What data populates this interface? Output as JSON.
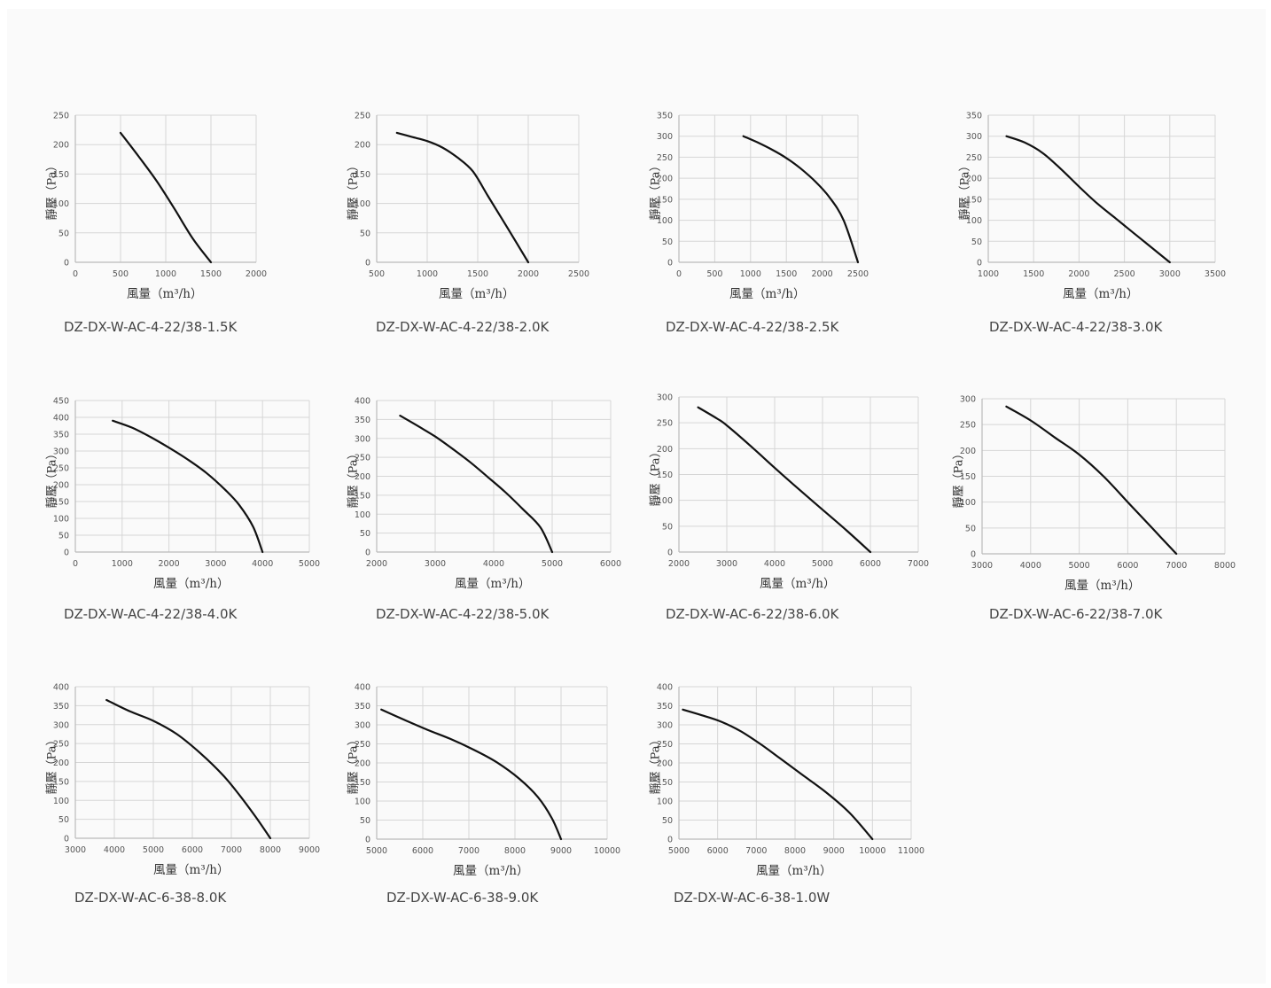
{
  "chart_data": [
    {
      "type": "line",
      "title": "DZ-DX-W-AC-4-22/38-1.5K",
      "xlabel": "風量（m³/h）",
      "ylabel": "靜壓（Pa）",
      "xlim": [
        0,
        2000
      ],
      "ylim": [
        0,
        250
      ],
      "xticks": [
        0,
        500,
        1000,
        1500,
        2000
      ],
      "yticks": [
        0,
        50,
        100,
        150,
        200,
        250
      ],
      "x": [
        500,
        700,
        900,
        1100,
        1300,
        1500
      ],
      "y": [
        220,
        180,
        138,
        90,
        40,
        0
      ]
    },
    {
      "type": "line",
      "title": "DZ-DX-W-AC-4-22/38-2.0K",
      "xlabel": "風量（m³/h）",
      "ylabel": "靜壓（Pa）",
      "xlim": [
        500,
        2500
      ],
      "ylim": [
        0,
        250
      ],
      "xticks": [
        500,
        1000,
        1500,
        2000,
        2500
      ],
      "yticks": [
        0,
        50,
        100,
        150,
        200,
        250
      ],
      "x": [
        700,
        850,
        1000,
        1150,
        1300,
        1450,
        1600,
        1800,
        2000
      ],
      "y": [
        220,
        213,
        206,
        195,
        178,
        155,
        113,
        57,
        0
      ]
    },
    {
      "type": "line",
      "title": "DZ-DX-W-AC-4-22/38-2.5K",
      "xlabel": "風量（m³/h）",
      "ylabel": "靜壓（Pa）",
      "xlim": [
        0,
        2500
      ],
      "ylim": [
        0,
        350
      ],
      "xticks": [
        0,
        500,
        1000,
        1500,
        2000,
        2500
      ],
      "yticks": [
        0,
        50,
        100,
        150,
        200,
        250,
        300,
        350
      ],
      "x": [
        900,
        1100,
        1300,
        1500,
        1700,
        1900,
        2100,
        2300,
        2500
      ],
      "y": [
        300,
        285,
        268,
        248,
        223,
        193,
        155,
        100,
        0
      ]
    },
    {
      "type": "line",
      "title": "DZ-DX-W-AC-4-22/38-3.0K",
      "xlabel": "風量（m³/h）",
      "ylabel": "靜壓（Pa）",
      "xlim": [
        1000,
        3500
      ],
      "ylim": [
        0,
        350
      ],
      "xticks": [
        1000,
        1500,
        2000,
        2500,
        3000,
        3500
      ],
      "yticks": [
        0,
        50,
        100,
        150,
        200,
        250,
        300,
        350
      ],
      "x": [
        1200,
        1400,
        1600,
        1800,
        2000,
        2200,
        2400,
        2600,
        2800,
        3000
      ],
      "y": [
        300,
        285,
        260,
        222,
        180,
        140,
        105,
        70,
        35,
        0
      ]
    },
    {
      "type": "line",
      "title": "DZ-DX-W-AC-4-22/38-4.0K",
      "xlabel": "風量（m³/h）",
      "ylabel": "靜壓（Pa）",
      "xlim": [
        0,
        5000
      ],
      "ylim": [
        0,
        450
      ],
      "xticks": [
        0,
        1000,
        2000,
        3000,
        4000,
        5000
      ],
      "yticks": [
        0,
        50,
        100,
        150,
        200,
        250,
        300,
        350,
        400,
        450
      ],
      "x": [
        800,
        1200,
        1600,
        2000,
        2400,
        2800,
        3200,
        3500,
        3800,
        4000
      ],
      "y": [
        390,
        370,
        342,
        310,
        275,
        235,
        185,
        140,
        75,
        0
      ]
    },
    {
      "type": "line",
      "title": "DZ-DX-W-AC-4-22/38-5.0K",
      "xlabel": "風量（m³/h）",
      "ylabel": "靜壓（Pa）",
      "xlim": [
        2000,
        6000
      ],
      "ylim": [
        0,
        400
      ],
      "xticks": [
        2000,
        3000,
        4000,
        5000,
        6000
      ],
      "yticks": [
        0,
        50,
        100,
        150,
        200,
        250,
        300,
        350,
        400
      ],
      "x": [
        2400,
        2700,
        3000,
        3300,
        3600,
        3900,
        4200,
        4500,
        4800,
        5000
      ],
      "y": [
        360,
        333,
        305,
        272,
        237,
        198,
        158,
        113,
        65,
        0
      ]
    },
    {
      "type": "line",
      "title": "DZ-DX-W-AC-6-22/38-6.0K",
      "xlabel": "風量（m³/h）",
      "ylabel": "靜壓（Pa）",
      "xlim": [
        2000,
        7000
      ],
      "ylim": [
        0,
        300
      ],
      "xticks": [
        2000,
        3000,
        4000,
        5000,
        6000,
        7000
      ],
      "yticks": [
        0,
        50,
        100,
        150,
        200,
        250,
        300
      ],
      "x": [
        2400,
        2800,
        3000,
        3500,
        4000,
        4500,
        5000,
        5500,
        6000
      ],
      "y": [
        280,
        258,
        245,
        205,
        163,
        122,
        82,
        42,
        0
      ]
    },
    {
      "type": "line",
      "title": "DZ-DX-W-AC-6-22/38-7.0K",
      "xlabel": "風量（m³/h）",
      "ylabel": "靜壓（Pa）",
      "xlim": [
        3000,
        8000
      ],
      "ylim": [
        0,
        300
      ],
      "xticks": [
        3000,
        4000,
        5000,
        6000,
        7000,
        8000
      ],
      "yticks": [
        0,
        50,
        100,
        150,
        200,
        250,
        300
      ],
      "x": [
        3500,
        4000,
        4500,
        5000,
        5500,
        6000,
        6500,
        7000
      ],
      "y": [
        285,
        258,
        225,
        192,
        150,
        100,
        50,
        0
      ]
    },
    {
      "type": "line",
      "title": "DZ-DX-W-AC-6-38-8.0K",
      "xlabel": "風量（m³/h）",
      "ylabel": "靜壓（Pa）",
      "xlim": [
        3000,
        9000
      ],
      "ylim": [
        0,
        400
      ],
      "xticks": [
        3000,
        4000,
        5000,
        6000,
        7000,
        8000,
        9000
      ],
      "yticks": [
        0,
        50,
        100,
        150,
        200,
        250,
        300,
        350,
        400
      ],
      "x": [
        3800,
        4400,
        5000,
        5600,
        6200,
        6800,
        7200,
        7600,
        8000
      ],
      "y": [
        365,
        335,
        310,
        275,
        225,
        165,
        115,
        60,
        0
      ]
    },
    {
      "type": "line",
      "title": "DZ-DX-W-AC-6-38-9.0K",
      "xlabel": "風量（m³/h）",
      "ylabel": "靜壓（Pa）",
      "xlim": [
        5000,
        10000
      ],
      "ylim": [
        0,
        400
      ],
      "xticks": [
        5000,
        6000,
        7000,
        8000,
        9000,
        10000
      ],
      "yticks": [
        0,
        50,
        100,
        150,
        200,
        250,
        300,
        350,
        400
      ],
      "x": [
        5100,
        5600,
        6100,
        6600,
        7100,
        7600,
        8100,
        8500,
        8800,
        9000
      ],
      "y": [
        340,
        313,
        287,
        263,
        235,
        202,
        158,
        110,
        55,
        0
      ]
    },
    {
      "type": "line",
      "title": "DZ-DX-W-AC-6-38-1.0W",
      "xlabel": "風量（m³/h）",
      "ylabel": "靜壓（Pa）",
      "xlim": [
        5000,
        11000
      ],
      "ylim": [
        0,
        400
      ],
      "xticks": [
        5000,
        6000,
        7000,
        8000,
        9000,
        10000,
        11000
      ],
      "yticks": [
        0,
        50,
        100,
        150,
        200,
        250,
        300,
        350,
        400
      ],
      "x": [
        5100,
        5600,
        6100,
        6600,
        7100,
        7600,
        8200,
        8800,
        9400,
        10000
      ],
      "y": [
        340,
        325,
        308,
        283,
        250,
        213,
        168,
        123,
        70,
        0
      ]
    }
  ],
  "colors": {
    "curve": "#111111",
    "grid": "#d6d6d6",
    "axis": "#bbbbbb",
    "tick": "#555555"
  }
}
